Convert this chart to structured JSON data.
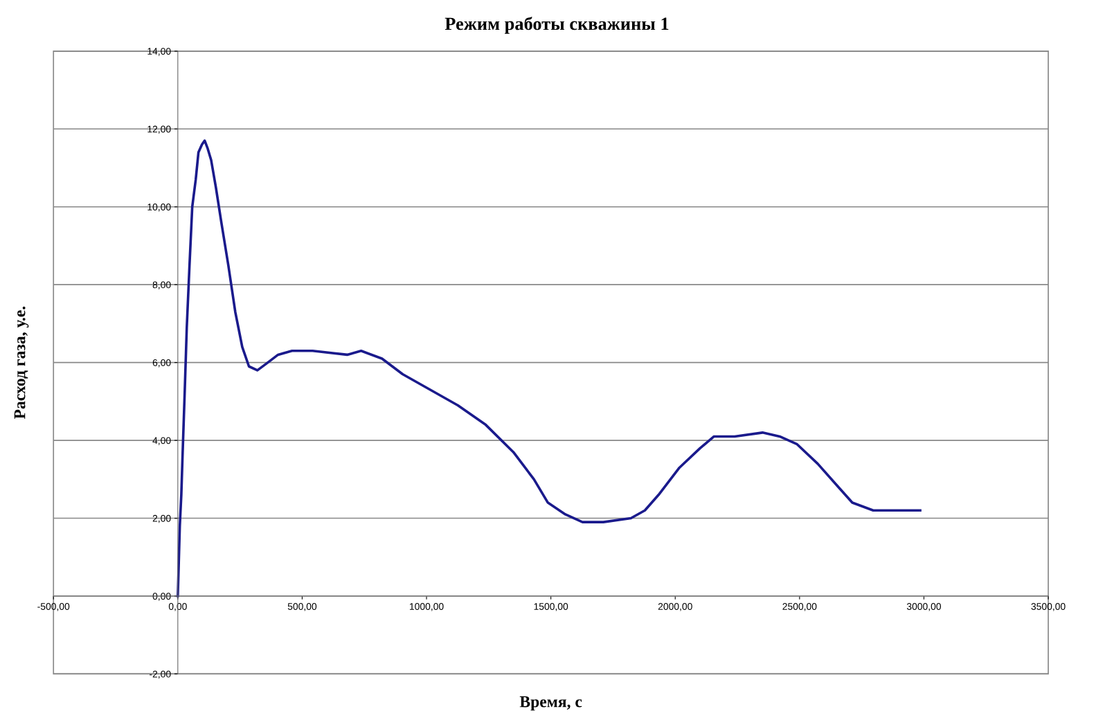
{
  "chart_data": {
    "type": "line",
    "title": "Режим работы скважины 1",
    "xlabel": "Время, с",
    "ylabel": "Расход газа, у.е.",
    "xlim": [
      -500,
      3500
    ],
    "ylim": [
      -2,
      14
    ],
    "xticks": [
      {
        "value": -500,
        "label": "-500,00"
      },
      {
        "value": 0,
        "label": "0,00"
      },
      {
        "value": 500,
        "label": "500,00"
      },
      {
        "value": 1000,
        "label": "1000,00"
      },
      {
        "value": 1500,
        "label": "1500,00"
      },
      {
        "value": 2000,
        "label": "2000,00"
      },
      {
        "value": 2500,
        "label": "2500,00"
      },
      {
        "value": 3000,
        "label": "3000,00"
      },
      {
        "value": 3500,
        "label": "3500,00"
      }
    ],
    "yticks": [
      {
        "value": -2,
        "label": "-2,00"
      },
      {
        "value": 0,
        "label": "0,00"
      },
      {
        "value": 2,
        "label": "2,00"
      },
      {
        "value": 4,
        "label": "4,00"
      },
      {
        "value": 6,
        "label": "6,00"
      },
      {
        "value": 8,
        "label": "8,00"
      },
      {
        "value": 10,
        "label": "10,00"
      },
      {
        "value": 12,
        "label": "12,00"
      },
      {
        "value": 14,
        "label": "14,00"
      }
    ],
    "grid": "y",
    "marker": "none",
    "line_style": "solid",
    "series": [
      {
        "color": "#1a1a8c",
        "x": [
          0,
          8,
          14,
          19,
          28,
          36,
          47,
          58,
          72,
          83,
          97,
          108,
          120,
          134,
          153,
          175,
          203,
          231,
          259,
          286,
          320,
          362,
          403,
          459,
          542,
          681,
          737,
          821,
          904,
          1015,
          1126,
          1238,
          1349,
          1432,
          1488,
          1558,
          1627,
          1711,
          1822,
          1878,
          1933,
          2017,
          2100,
          2156,
          2239,
          2351,
          2420,
          2490,
          2573,
          2656,
          2712,
          2796,
          2879,
          2985
        ],
        "values": [
          0,
          1.8,
          2.6,
          3.6,
          5.3,
          6.9,
          8.5,
          10.0,
          10.7,
          11.4,
          11.6,
          11.7,
          11.5,
          11.2,
          10.5,
          9.6,
          8.5,
          7.3,
          6.4,
          5.9,
          5.8,
          6.0,
          6.2,
          6.3,
          6.3,
          6.2,
          6.3,
          6.1,
          5.7,
          5.3,
          4.9,
          4.4,
          3.7,
          3.0,
          2.4,
          2.1,
          1.9,
          1.9,
          2.0,
          2.2,
          2.6,
          3.3,
          3.8,
          4.1,
          4.1,
          4.2,
          4.1,
          3.9,
          3.4,
          2.8,
          2.4,
          2.2,
          2.2,
          2.2
        ]
      }
    ]
  }
}
